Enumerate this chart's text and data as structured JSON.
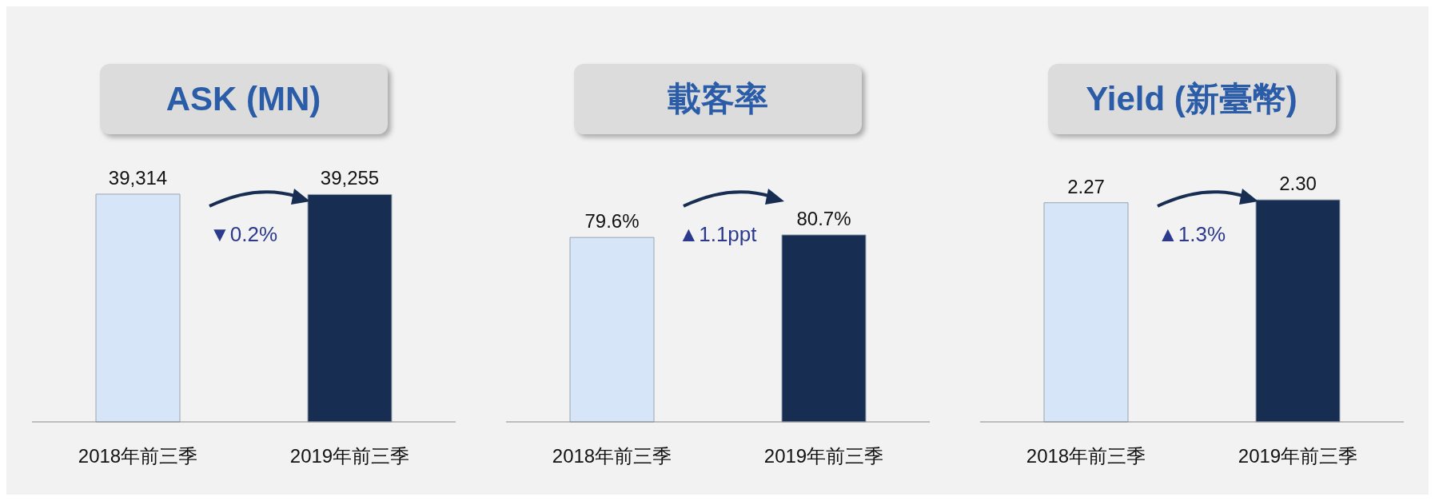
{
  "chart_data": [
    {
      "type": "bar",
      "title": "ASK (MN)",
      "categories": [
        "2018年前三季",
        "2019年前三季"
      ],
      "values": [
        39314,
        39255
      ],
      "colors": [
        "#d6e6f8",
        "#172e52"
      ],
      "value_labels": [
        "39,314",
        "39,255"
      ],
      "annotations": [
        "▼0.2%"
      ]
    },
    {
      "type": "bar",
      "title": "載客率",
      "categories": [
        "2018年前三季",
        "2019年前三季"
      ],
      "values": [
        79.6,
        80.7
      ],
      "colors": [
        "#d6e6f8",
        "#172e52"
      ],
      "value_labels": [
        "79.6%",
        "80.7%"
      ],
      "annotations": [
        "▲1.1ppt"
      ]
    },
    {
      "type": "bar",
      "title": "Yield (新臺幣)",
      "categories": [
        "2018年前三季",
        "2019年前三季"
      ],
      "values": [
        2.27,
        2.3
      ],
      "colors": [
        "#d6e6f8",
        "#172e52"
      ],
      "value_labels": [
        "2.27",
        "2.30"
      ],
      "annotations": [
        "▲1.3%"
      ]
    }
  ]
}
